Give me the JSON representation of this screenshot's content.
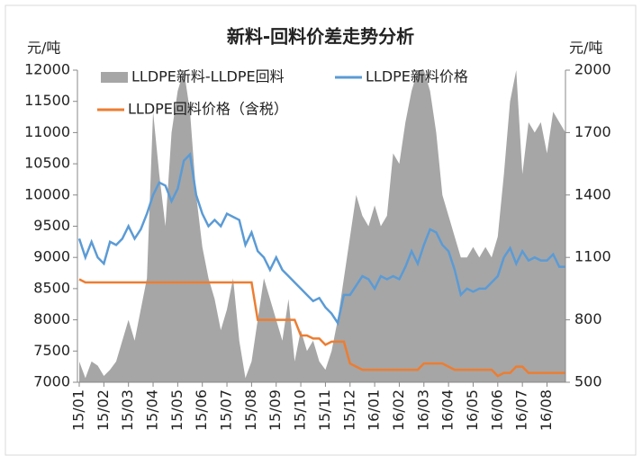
{
  "chart_data": {
    "type": "area_line_dual",
    "title": "新料-回料价差走势分析",
    "y_label": "元/吨",
    "y2_label": "元/吨",
    "categories": [
      "15/01",
      null,
      null,
      null,
      "15/02",
      null,
      null,
      null,
      "15/03",
      null,
      null,
      null,
      "15/04",
      null,
      null,
      null,
      "15/05",
      null,
      null,
      null,
      "15/06",
      null,
      null,
      null,
      "15/07",
      null,
      null,
      null,
      "15/08",
      null,
      null,
      null,
      "15/09",
      null,
      null,
      null,
      "15/10",
      null,
      null,
      null,
      "15/11",
      null,
      null,
      null,
      "15/12",
      null,
      null,
      null,
      "16/01",
      null,
      null,
      null,
      "16/02",
      null,
      null,
      null,
      "16/03",
      null,
      null,
      null,
      "16/04",
      null,
      null,
      null,
      "16/05",
      null,
      null,
      null,
      "16/06",
      null,
      null,
      null,
      "16/07",
      null,
      null,
      null,
      "16/08",
      null,
      null,
      null
    ],
    "series": [
      {
        "name": "LLDPE新料-LLDPE回料",
        "type": "area",
        "axis": "y2",
        "color": "#a6a6a6",
        "values": [
          600,
          520,
          600,
          580,
          530,
          560,
          600,
          700,
          800,
          700,
          850,
          1000,
          1800,
          1500,
          1250,
          1700,
          1900,
          2000,
          1800,
          1400,
          1150,
          1000,
          900,
          750,
          850,
          1000,
          700,
          520,
          600,
          800,
          1000,
          900,
          800,
          700,
          900,
          600,
          750,
          650,
          700,
          600,
          560,
          650,
          800,
          1000,
          1200,
          1400,
          1300,
          1250,
          1350,
          1250,
          1300,
          1600,
          1550,
          1750,
          1900,
          2000,
          2000,
          1900,
          1700,
          1400,
          1300,
          1200,
          1100,
          1100,
          1150,
          1100,
          1150,
          1100,
          1200,
          1500,
          1850,
          2000,
          1500,
          1750,
          1700,
          1750,
          1600,
          1800,
          1750,
          1700
        ]
      },
      {
        "name": "LLDPE新料价格",
        "type": "line",
        "color": "#5b9bd5",
        "values": [
          9300,
          9000,
          9250,
          9000,
          8900,
          9250,
          9200,
          9300,
          9500,
          9300,
          9450,
          9700,
          10000,
          10200,
          10150,
          9900,
          10100,
          10550,
          10650,
          10000,
          9700,
          9500,
          9600,
          9500,
          9700,
          9650,
          9600,
          9200,
          9400,
          9100,
          9000,
          8800,
          9000,
          8800,
          8700,
          8600,
          8500,
          8400,
          8300,
          8350,
          8200,
          8100,
          7950,
          8400,
          8400,
          8550,
          8700,
          8650,
          8500,
          8700,
          8650,
          8700,
          8650,
          8850,
          9100,
          8900,
          9200,
          9450,
          9400,
          9200,
          9100,
          8800,
          8400,
          8500,
          8450,
          8500,
          8500,
          8600,
          8700,
          9000,
          9150,
          8900,
          9100,
          8950,
          9000,
          8950,
          8950,
          9050,
          8850,
          8850
        ]
      },
      {
        "name": "LLDPE回料价格（含税）",
        "type": "line",
        "color": "#ed7d31",
        "values": [
          8650,
          8600,
          8600,
          8600,
          8600,
          8600,
          8600,
          8600,
          8600,
          8600,
          8600,
          8600,
          8600,
          8600,
          8600,
          8600,
          8600,
          8600,
          8600,
          8600,
          8600,
          8600,
          8600,
          8600,
          8600,
          8600,
          8600,
          8600,
          8600,
          8000,
          8000,
          8000,
          8000,
          8000,
          8000,
          8000,
          7750,
          7750,
          7700,
          7700,
          7600,
          7650,
          7650,
          7650,
          7300,
          7250,
          7200,
          7200,
          7200,
          7200,
          7200,
          7200,
          7200,
          7200,
          7200,
          7200,
          7300,
          7300,
          7300,
          7300,
          7250,
          7200,
          7200,
          7200,
          7200,
          7200,
          7200,
          7200,
          7100,
          7150,
          7150,
          7250,
          7250,
          7150,
          7150,
          7150,
          7150,
          7150,
          7150,
          7150
        ]
      }
    ],
    "ylim": [
      7000,
      12000
    ],
    "yticks": [
      7000,
      7500,
      8000,
      8500,
      9000,
      9500,
      10000,
      10500,
      11000,
      11500,
      12000
    ],
    "y2lim": [
      500,
      2000
    ],
    "y2ticks": [
      500,
      800,
      1100,
      1400,
      1700,
      2000
    ],
    "grid": false
  }
}
